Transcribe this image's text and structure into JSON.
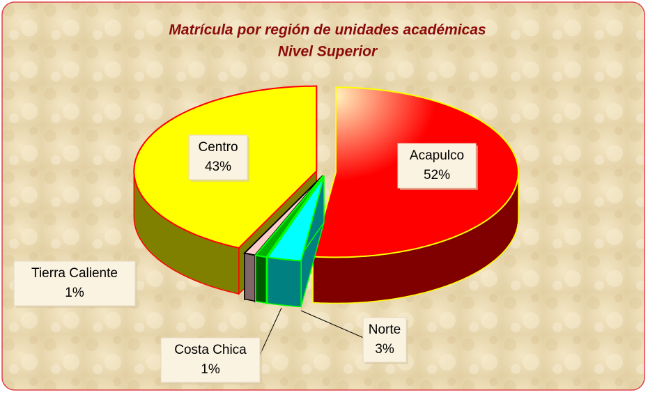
{
  "chart_data": {
    "type": "pie3d",
    "title": "Matrícula por región de unidades académicas",
    "subtitle": "Nivel Superior",
    "categories": [
      "Acapulco",
      "Norte",
      "Costa Chica",
      "Tierra Caliente",
      "Centro"
    ],
    "values": [
      52,
      3,
      1,
      1,
      43
    ],
    "value_labels": [
      "52%",
      "3%",
      "1%",
      "1%",
      "43%"
    ],
    "colors": [
      "#ff0000",
      "#00ffff",
      "#00b000",
      "#ffcccc",
      "#ffff00"
    ],
    "edge_colors": [
      "#ffff00",
      "#00ff00",
      "#00ff00",
      "#000000",
      "#ff0000"
    ]
  }
}
